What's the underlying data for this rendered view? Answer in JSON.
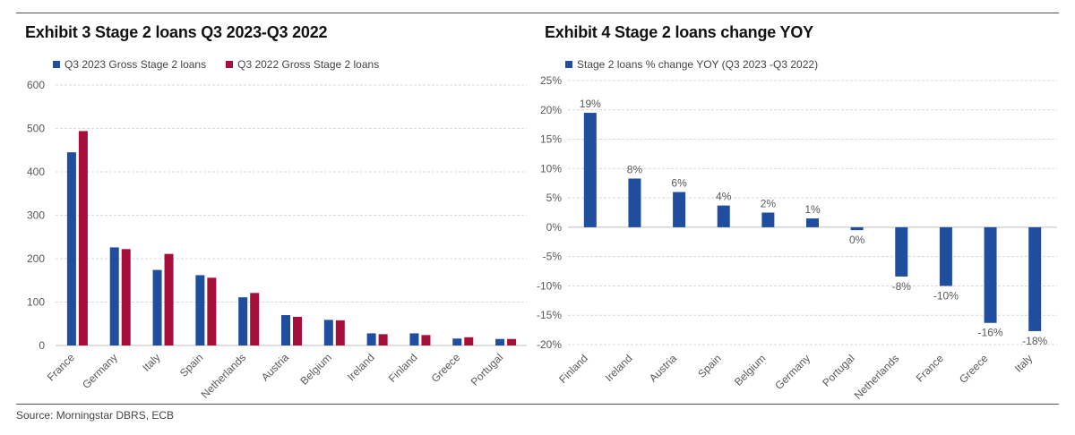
{
  "colors": {
    "blue": "#1f4e9e",
    "red": "#a50f3a",
    "grid": "#d9d9d9",
    "axis": "#bfbfbf",
    "text": "#595959"
  },
  "source": "Source: Morningstar DBRS, ECB",
  "chart_data": [
    {
      "type": "bar",
      "title": "Exhibit 3 Stage 2 loans Q3 2023-Q3 2022",
      "categories": [
        "France",
        "Germany",
        "Italy",
        "Spain",
        "Netherlands",
        "Austria",
        "Belgium",
        "Ireland",
        "Finland",
        "Greece",
        "Portugal"
      ],
      "series": [
        {
          "name": "Q3 2023 Gross Stage 2 loans",
          "color": "#1f4e9e",
          "values": [
            445,
            226,
            174,
            162,
            111,
            70,
            59,
            28,
            28,
            16,
            15
          ]
        },
        {
          "name": "Q3 2022 Gross Stage 2 loans",
          "color": "#a50f3a",
          "values": [
            494,
            222,
            211,
            156,
            121,
            66,
            58,
            26,
            24,
            19,
            15
          ]
        }
      ],
      "ylim": [
        0,
        600
      ],
      "yticks": [
        0,
        100,
        200,
        300,
        400,
        500,
        600
      ],
      "ytick_labels": [
        "0",
        "100",
        "200",
        "300",
        "400",
        "500",
        "600"
      ],
      "grid": true,
      "legend": "top-left"
    },
    {
      "type": "bar",
      "title": "Exhibit 4 Stage 2 loans change YOY",
      "categories": [
        "Finland",
        "Ireland",
        "Austria",
        "Spain",
        "Belgium",
        "Germany",
        "Portugal",
        "Netherlands",
        "France",
        "Greece",
        "Italy"
      ],
      "series": [
        {
          "name": "Stage 2 loans % change YOY (Q3 2023 -Q3 2022)",
          "color": "#1f4e9e",
          "values": [
            19.5,
            8.3,
            6.0,
            3.7,
            2.5,
            1.5,
            -0.5,
            -8.4,
            -10.0,
            -16.3,
            -17.7
          ]
        }
      ],
      "data_labels": [
        "19%",
        "8%",
        "6%",
        "4%",
        "2%",
        "1%",
        "0%",
        "-8%",
        "-10%",
        "-16%",
        "-18%"
      ],
      "ylim": [
        -20,
        25
      ],
      "yticks": [
        -20,
        -15,
        -10,
        -5,
        0,
        5,
        10,
        15,
        20,
        25
      ],
      "ytick_labels": [
        "-20%",
        "-15%",
        "-10%",
        "-5%",
        "0%",
        "5%",
        "10%",
        "15%",
        "20%",
        "25%"
      ],
      "grid": true,
      "legend": "top-left"
    }
  ]
}
